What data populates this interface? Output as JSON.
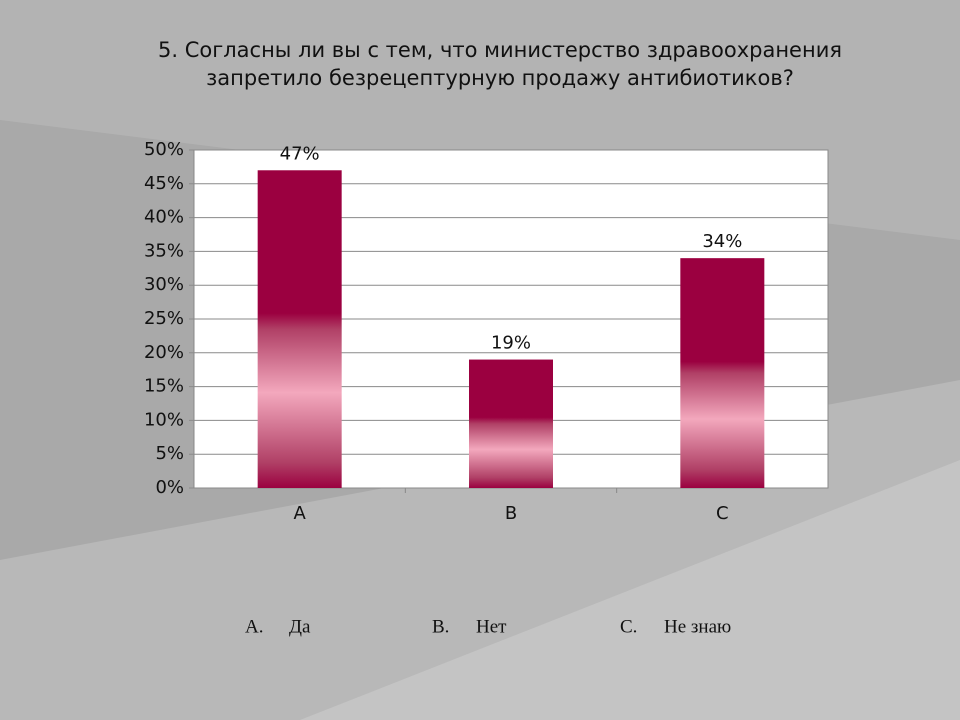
{
  "chart_data": {
    "type": "bar",
    "title": "5. Согласны ли вы с тем, что министерство здравоохранения запретило безрецептурную продажу антибиотиков?",
    "categories": [
      "A",
      "B",
      "C"
    ],
    "values": [
      47,
      19,
      34
    ],
    "value_labels": [
      "47%",
      "19%",
      "34%"
    ],
    "color": "#9b0040",
    "ylim": [
      0,
      50
    ],
    "yticks": [
      {
        "value": 0,
        "label": "0%"
      },
      {
        "value": 5,
        "label": "5%"
      },
      {
        "value": 10,
        "label": "10%"
      },
      {
        "value": 15,
        "label": "15%"
      },
      {
        "value": 20,
        "label": "20%"
      },
      {
        "value": 25,
        "label": "25%"
      },
      {
        "value": 30,
        "label": "30%"
      },
      {
        "value": 35,
        "label": "35%"
      },
      {
        "value": 40,
        "label": "40%"
      },
      {
        "value": 45,
        "label": "45%"
      },
      {
        "value": 50,
        "label": "50%"
      }
    ],
    "grid": true
  },
  "answers": [
    {
      "letter": "A.",
      "text": "Да"
    },
    {
      "letter": "B.",
      "text": "Нет"
    },
    {
      "letter": "C.",
      "text": "Не знаю"
    }
  ]
}
